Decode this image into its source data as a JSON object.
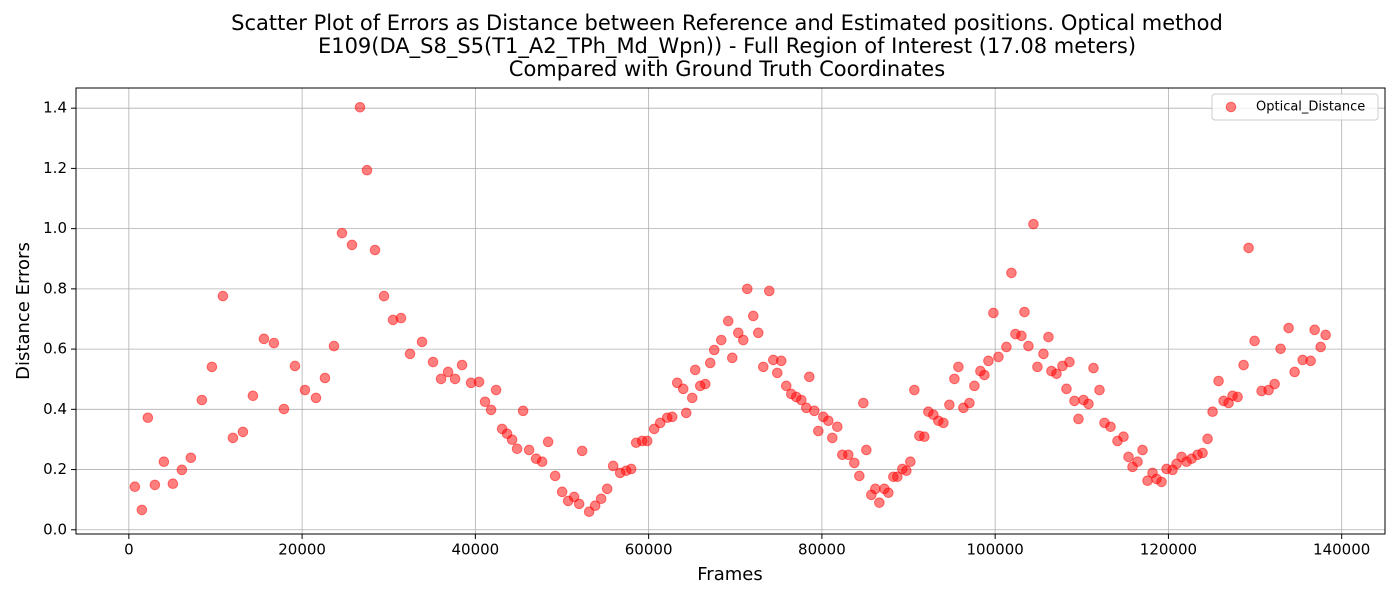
{
  "chart_data": {
    "type": "scatter",
    "title": [
      "Scatter Plot of Errors as Distance between Reference and Estimated positions. Optical method",
      "E109(DA_S8_S5(T1_A2_TPh_Md_Wpn)) - Full Region of Interest (17.08 meters)",
      "Compared with Ground Truth Coordinates"
    ],
    "x_label": "Frames",
    "y_label": "Distance Errors",
    "xlim": [
      -6100,
      145000
    ],
    "ylim": [
      -0.014,
      1.467
    ],
    "xticks": [
      0,
      20000,
      40000,
      60000,
      80000,
      100000,
      120000,
      140000
    ],
    "yticks": [
      {
        "value": 0,
        "label": "0.0"
      },
      0.2,
      0.4,
      0.6,
      0.8,
      {
        "value": 1,
        "label": "1.0"
      },
      1.2,
      1.4
    ],
    "grid": true,
    "legend": "upper right",
    "series": [
      {
        "name": "Optical_Distance",
        "color": "#ff0000",
        "opacity": 0.5,
        "x": [
          693,
          1502,
          2195,
          3003,
          4043,
          5083,
          6122,
          7162,
          8433,
          9588,
          10858,
          12013,
          13168,
          14323,
          15594,
          16749,
          17904,
          19175,
          20330,
          21600,
          22640,
          23680,
          24604,
          25759,
          26683,
          27492,
          28416,
          29456,
          30495,
          31419,
          32459,
          33845,
          35116,
          36040,
          36849,
          37657,
          38466,
          39506,
          40430,
          41123,
          41816,
          42394,
          43087,
          43664,
          44242,
          44819,
          45512,
          46205,
          47014,
          47707,
          48400,
          49209,
          50017,
          50710,
          51403,
          51981,
          52328,
          53136,
          53829,
          54523,
          55216,
          55909,
          56717,
          57410,
          57988,
          58565,
          59258,
          59836,
          60644,
          61337,
          62146,
          62723,
          63301,
          63994,
          64341,
          65034,
          65380,
          65958,
          66536,
          67113,
          67575,
          68383,
          69192,
          69654,
          70347,
          70924,
          71386,
          72079,
          72657,
          73234,
          73927,
          74389,
          74851,
          75313,
          75891,
          76469,
          77046,
          77624,
          78201,
          78548,
          79125,
          79587,
          80165,
          80742,
          81204,
          81782,
          82359,
          83052,
          83745,
          84323,
          84785,
          85131,
          85709,
          86171,
          86633,
          87210,
          87672,
          88250,
          88712,
          89289,
          89751,
          90213,
          90675,
          91253,
          91830,
          92292,
          92870,
          93447,
          94025,
          94718,
          95295,
          95757,
          96335,
          97028,
          97605,
          98298,
          98760,
          99222,
          99800,
          100378,
          101302,
          101879,
          102341,
          103034,
          103381,
          103843,
          104420,
          104882,
          105575,
          106153,
          106499,
          107077,
          107770,
          108232,
          108579,
          109156,
          109618,
          110196,
          110773,
          111351,
          112044,
          112621,
          113315,
          114123,
          114816,
          115394,
          115856,
          116433,
          117011,
          117589,
          118166,
          118628,
          119206,
          119783,
          120476,
          120938,
          121516,
          122093,
          122671,
          123364,
          123942,
          124519,
          125097,
          125790,
          126368,
          126945,
          127407,
          127985,
          128678,
          129256,
          129949,
          130757,
          131566,
          132259,
          132952,
          133876,
          134569,
          135493,
          136417,
          136879,
          137572,
          138150
        ],
        "values": [
          0.143,
          0.066,
          0.372,
          0.149,
          0.226,
          0.153,
          0.199,
          0.239,
          0.431,
          0.541,
          0.776,
          0.305,
          0.325,
          0.445,
          0.634,
          0.62,
          0.401,
          0.544,
          0.464,
          0.438,
          0.504,
          0.61,
          0.985,
          0.946,
          1.403,
          1.194,
          0.929,
          0.776,
          0.697,
          0.703,
          0.584,
          0.624,
          0.557,
          0.501,
          0.524,
          0.501,
          0.547,
          0.488,
          0.491,
          0.425,
          0.398,
          0.464,
          0.335,
          0.319,
          0.299,
          0.269,
          0.395,
          0.265,
          0.236,
          0.226,
          0.292,
          0.179,
          0.126,
          0.096,
          0.109,
          0.086,
          0.262,
          0.06,
          0.08,
          0.103,
          0.136,
          0.212,
          0.189,
          0.196,
          0.202,
          0.289,
          0.295,
          0.295,
          0.335,
          0.355,
          0.372,
          0.375,
          0.488,
          0.468,
          0.388,
          0.438,
          0.531,
          0.478,
          0.484,
          0.554,
          0.597,
          0.63,
          0.693,
          0.571,
          0.654,
          0.63,
          0.8,
          0.71,
          0.654,
          0.541,
          0.793,
          0.564,
          0.521,
          0.561,
          0.478,
          0.451,
          0.441,
          0.431,
          0.405,
          0.508,
          0.395,
          0.328,
          0.375,
          0.362,
          0.305,
          0.342,
          0.249,
          0.249,
          0.222,
          0.179,
          0.421,
          0.265,
          0.116,
          0.136,
          0.09,
          0.136,
          0.123,
          0.176,
          0.176,
          0.202,
          0.196,
          0.226,
          0.464,
          0.312,
          0.309,
          0.392,
          0.382,
          0.362,
          0.355,
          0.415,
          0.501,
          0.541,
          0.405,
          0.421,
          0.478,
          0.527,
          0.514,
          0.561,
          0.72,
          0.574,
          0.607,
          0.853,
          0.65,
          0.644,
          0.723,
          0.61,
          1.015,
          0.541,
          0.584,
          0.64,
          0.527,
          0.518,
          0.544,
          0.468,
          0.557,
          0.428,
          0.368,
          0.431,
          0.418,
          0.537,
          0.464,
          0.355,
          0.342,
          0.295,
          0.309,
          0.242,
          0.209,
          0.226,
          0.265,
          0.163,
          0.189,
          0.169,
          0.159,
          0.202,
          0.199,
          0.219,
          0.242,
          0.226,
          0.236,
          0.249,
          0.255,
          0.302,
          0.392,
          0.494,
          0.428,
          0.421,
          0.445,
          0.441,
          0.547,
          0.936,
          0.627,
          0.461,
          0.464,
          0.484,
          0.601,
          0.67,
          0.524,
          0.564,
          0.561,
          0.664,
          0.607,
          0.647
        ]
      }
    ]
  }
}
